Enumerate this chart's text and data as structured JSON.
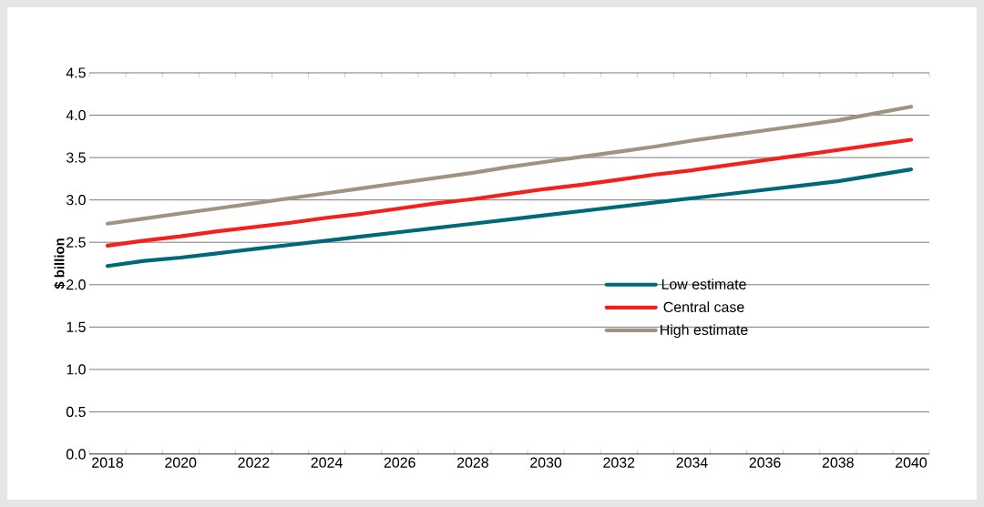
{
  "chart_data": {
    "type": "line",
    "ylabel": "$ billion",
    "categories": [
      "2018",
      null,
      "2020",
      null,
      "2022",
      null,
      "2024",
      null,
      "2026",
      null,
      "2028",
      null,
      "2030",
      null,
      "2032",
      null,
      "2034",
      null,
      "2036",
      null,
      "2038",
      null,
      "2040"
    ],
    "series": [
      {
        "name": "Low estimate",
        "color": "#006978",
        "values": [
          2.22,
          2.28,
          2.32,
          2.37,
          2.42,
          2.47,
          2.52,
          2.57,
          2.62,
          2.67,
          2.72,
          2.77,
          2.82,
          2.87,
          2.92,
          2.97,
          3.02,
          3.07,
          3.12,
          3.17,
          3.22,
          3.29,
          3.36
        ]
      },
      {
        "name": "Central case",
        "color": "#f5201c",
        "values": [
          2.46,
          2.52,
          2.57,
          2.63,
          2.68,
          2.73,
          2.79,
          2.84,
          2.9,
          2.96,
          3.01,
          3.07,
          3.13,
          3.18,
          3.24,
          3.3,
          3.35,
          3.41,
          3.47,
          3.53,
          3.59,
          3.65,
          3.71
        ]
      },
      {
        "name": "High estimate",
        "color": "#a09382",
        "values": [
          2.72,
          2.78,
          2.84,
          2.9,
          2.96,
          3.02,
          3.08,
          3.14,
          3.2,
          3.26,
          3.32,
          3.39,
          3.45,
          3.51,
          3.57,
          3.63,
          3.7,
          3.76,
          3.82,
          3.88,
          3.94,
          4.02,
          4.1
        ]
      }
    ],
    "ylim": [
      0,
      4.5
    ],
    "yticks": [
      {
        "value": 0,
        "label": "0.0"
      },
      0.5,
      {
        "value": 1,
        "label": "1.0"
      },
      1.5,
      {
        "value": 2,
        "label": "2.0"
      },
      2.5,
      {
        "value": 3,
        "label": "3.0"
      },
      3.5,
      {
        "value": 4,
        "label": "4.0"
      },
      4.5
    ],
    "grid": "y",
    "legend": "right",
    "marker": "none",
    "line_style": "solid"
  }
}
